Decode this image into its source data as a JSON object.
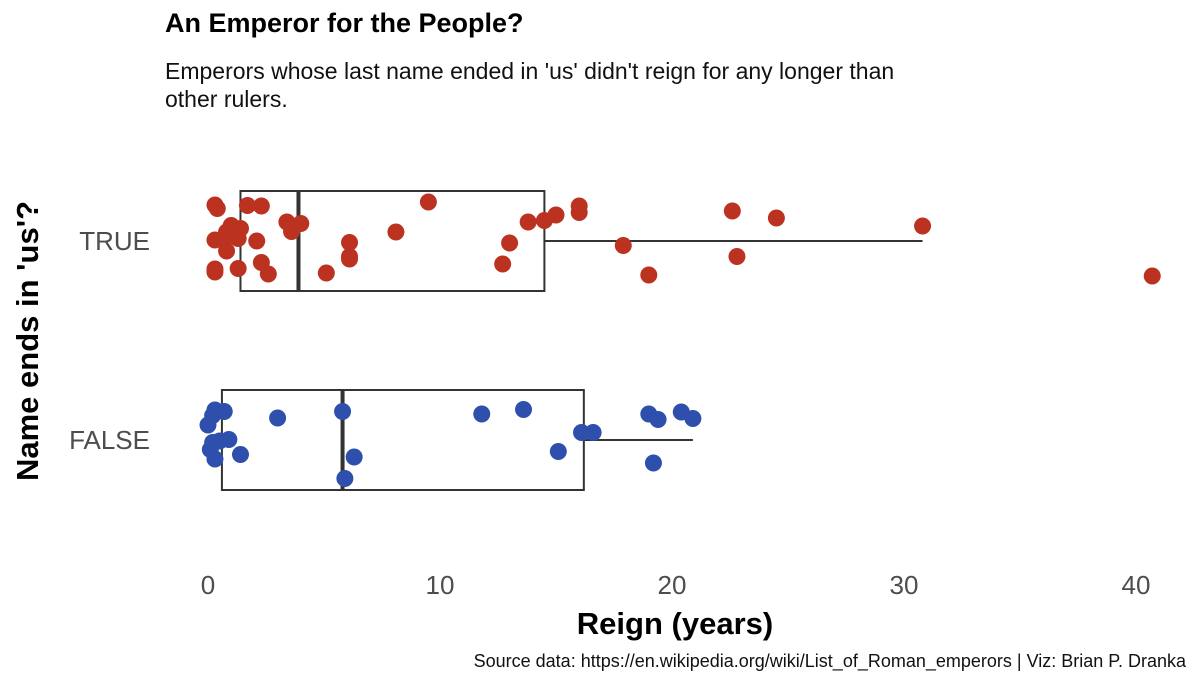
{
  "title": "An Emperor for the People?",
  "subtitle": "Emperors whose last name ended in 'us' didn't reign for any longer than other rulers.",
  "caption": "Source data: https://en.wikipedia.org/wiki/List_of_Roman_emperors | Viz: Brian P. Dranka",
  "colors": {
    "true": "#bb3320",
    "false": "#2f4fad",
    "box": "#333333"
  },
  "chart_data": {
    "type": "boxplot",
    "orientation": "horizontal",
    "xlabel": "Reign (years)",
    "ylabel": "Name ends in 'us'?",
    "xlim": [
      -1.5,
      41.5
    ],
    "xticks": [
      0,
      10,
      20,
      30,
      40
    ],
    "xtick_labels": [
      "0",
      "10",
      "20",
      "30",
      "40"
    ],
    "grid": false,
    "legend": "none",
    "categories": [
      "TRUE",
      "FALSE"
    ],
    "series": [
      {
        "group": "TRUE",
        "box": {
          "q1": 1.4,
          "median": 3.9,
          "q3": 14.5,
          "whisker_low": 0.0,
          "whisker_high": 30.8
        },
        "points": [
          {
            "x": 0.3,
            "j": 0.72
          },
          {
            "x": 0.4,
            "j": 0.65
          },
          {
            "x": 1.0,
            "j": 0.31
          },
          {
            "x": 1.4,
            "j": 0.25
          },
          {
            "x": 0.8,
            "j": 0.18
          },
          {
            "x": 1.7,
            "j": 0.71
          },
          {
            "x": 2.3,
            "j": 0.7
          },
          {
            "x": 0.3,
            "j": 0.02
          },
          {
            "x": 0.7,
            "j": 0.02
          },
          {
            "x": 1.3,
            "j": 0.05
          },
          {
            "x": 2.1,
            "j": 0.0
          },
          {
            "x": 3.4,
            "j": 0.38
          },
          {
            "x": 3.6,
            "j": 0.19
          },
          {
            "x": 4.0,
            "j": 0.35
          },
          {
            "x": 0.8,
            "j": -0.2
          },
          {
            "x": 0.3,
            "j": -0.56
          },
          {
            "x": 0.3,
            "j": -0.62
          },
          {
            "x": 1.3,
            "j": -0.55
          },
          {
            "x": 2.3,
            "j": -0.43
          },
          {
            "x": 2.6,
            "j": -0.66
          },
          {
            "x": 5.1,
            "j": -0.64
          },
          {
            "x": 6.1,
            "j": -0.31
          },
          {
            "x": 6.1,
            "j": -0.36
          },
          {
            "x": 6.1,
            "j": -0.03
          },
          {
            "x": 8.1,
            "j": 0.18
          },
          {
            "x": 9.5,
            "j": 0.78
          },
          {
            "x": 12.7,
            "j": -0.46
          },
          {
            "x": 13.0,
            "j": -0.04
          },
          {
            "x": 13.8,
            "j": 0.38
          },
          {
            "x": 14.5,
            "j": 0.41
          },
          {
            "x": 15.0,
            "j": 0.52
          },
          {
            "x": 16.0,
            "j": 0.57
          },
          {
            "x": 16.0,
            "j": 0.7
          },
          {
            "x": 17.9,
            "j": -0.09
          },
          {
            "x": 19.0,
            "j": -0.68
          },
          {
            "x": 22.6,
            "j": 0.6
          },
          {
            "x": 22.8,
            "j": -0.31
          },
          {
            "x": 24.5,
            "j": 0.46
          },
          {
            "x": 30.8,
            "j": 0.3
          },
          {
            "x": 40.7,
            "j": -0.7
          }
        ]
      },
      {
        "group": "FALSE",
        "box": {
          "q1": 0.6,
          "median": 5.8,
          "q3": 16.2,
          "whisker_low": 0.0,
          "whisker_high": 20.9
        },
        "points": [
          {
            "x": 0.3,
            "j": 0.6
          },
          {
            "x": 0.7,
            "j": 0.57
          },
          {
            "x": 0.2,
            "j": 0.49
          },
          {
            "x": 0.0,
            "j": 0.3
          },
          {
            "x": 0.9,
            "j": 0.01
          },
          {
            "x": 0.2,
            "j": -0.05
          },
          {
            "x": 0.5,
            "j": -0.02
          },
          {
            "x": 0.1,
            "j": -0.19
          },
          {
            "x": 0.3,
            "j": -0.38
          },
          {
            "x": 1.4,
            "j": -0.29
          },
          {
            "x": 3.0,
            "j": 0.44
          },
          {
            "x": 5.8,
            "j": 0.57
          },
          {
            "x": 6.3,
            "j": -0.34
          },
          {
            "x": 5.9,
            "j": -0.77
          },
          {
            "x": 11.8,
            "j": 0.52
          },
          {
            "x": 13.6,
            "j": 0.61
          },
          {
            "x": 15.1,
            "j": -0.23
          },
          {
            "x": 16.1,
            "j": 0.15
          },
          {
            "x": 16.6,
            "j": 0.15
          },
          {
            "x": 19.0,
            "j": 0.52
          },
          {
            "x": 19.4,
            "j": 0.41
          },
          {
            "x": 20.4,
            "j": 0.56
          },
          {
            "x": 20.9,
            "j": 0.43
          },
          {
            "x": 19.2,
            "j": -0.46
          }
        ]
      }
    ]
  }
}
